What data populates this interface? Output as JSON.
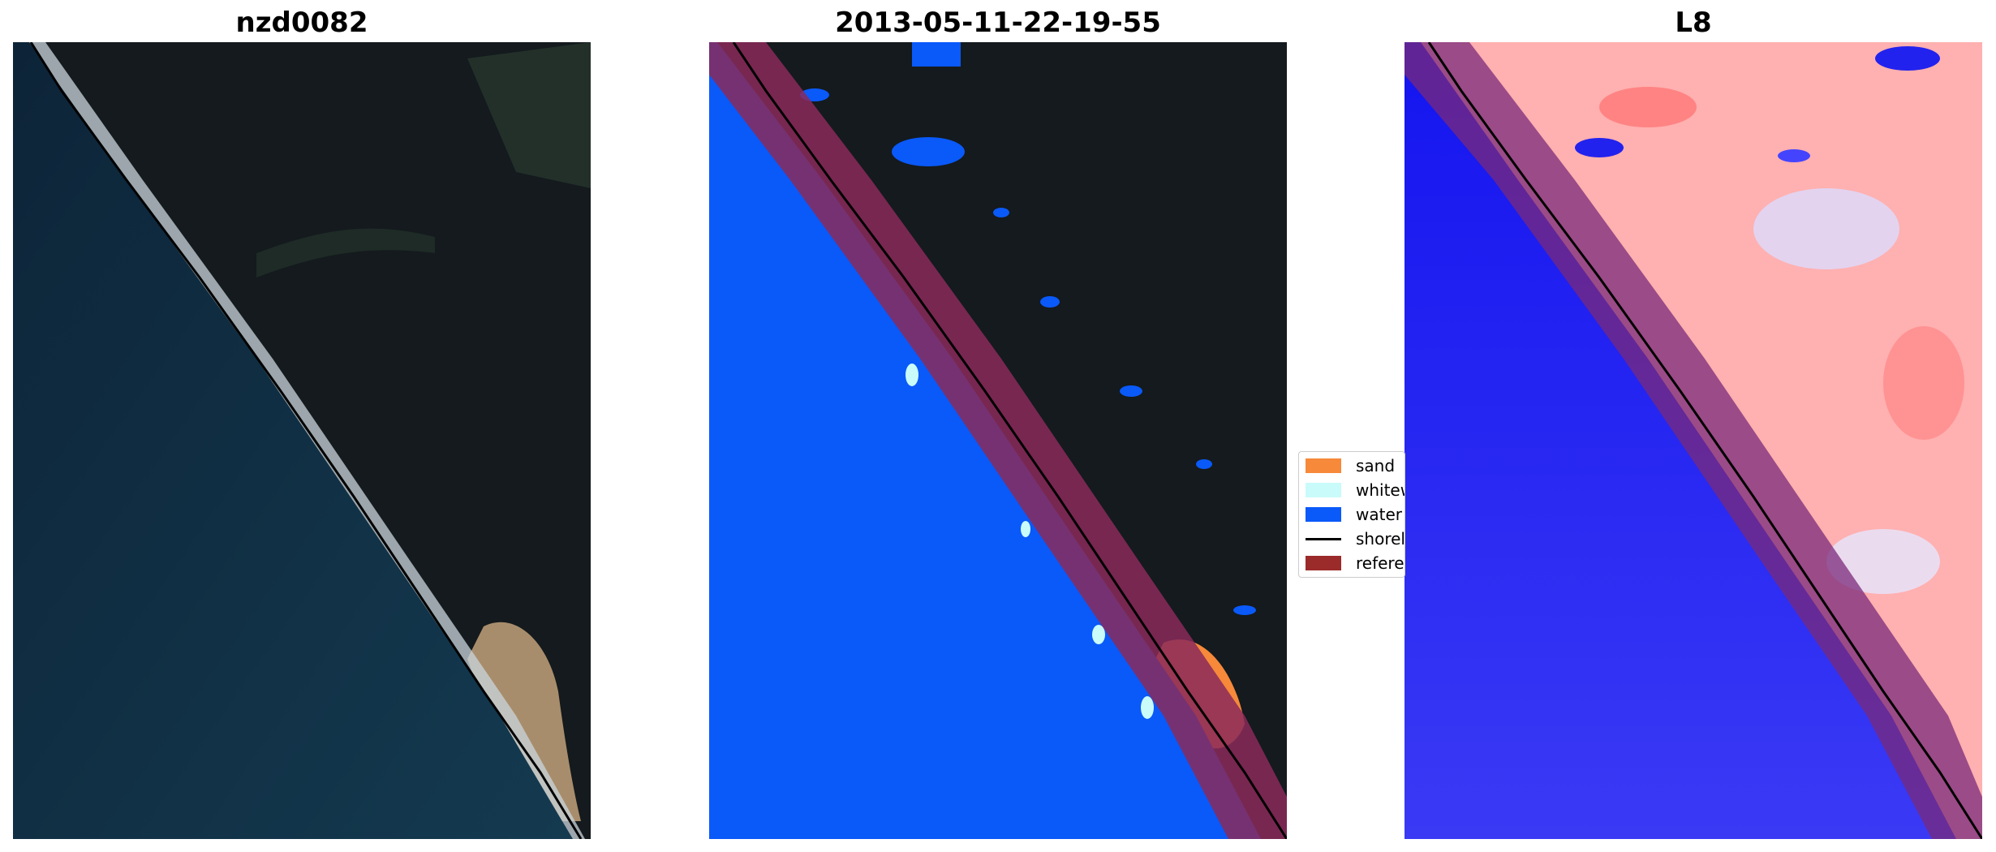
{
  "panels": [
    {
      "title": "nzd0082",
      "description": "satellite RGB image"
    },
    {
      "title": "2013-05-11-22-19-55",
      "description": "classified image overlay"
    },
    {
      "title": "L8",
      "description": "water index map"
    }
  ],
  "legend": {
    "items": [
      {
        "label": "sand",
        "color": "#f6893a"
      },
      {
        "label": "whitew",
        "color": "#c9fbfa"
      },
      {
        "label": "water",
        "color": "#0a59f9"
      },
      {
        "label": "shorel",
        "color": "#000000",
        "kind": "line"
      },
      {
        "label": "referen",
        "color": "#9b2b2b"
      }
    ]
  },
  "colors": {
    "ocean_dark": "#0f2a3e",
    "land_dark": "#141a1d",
    "water_class": "#0a59f9",
    "reference_band": "#8a2a5a",
    "index_red": "#ff8a8a",
    "index_blue": "#1a1af5"
  }
}
